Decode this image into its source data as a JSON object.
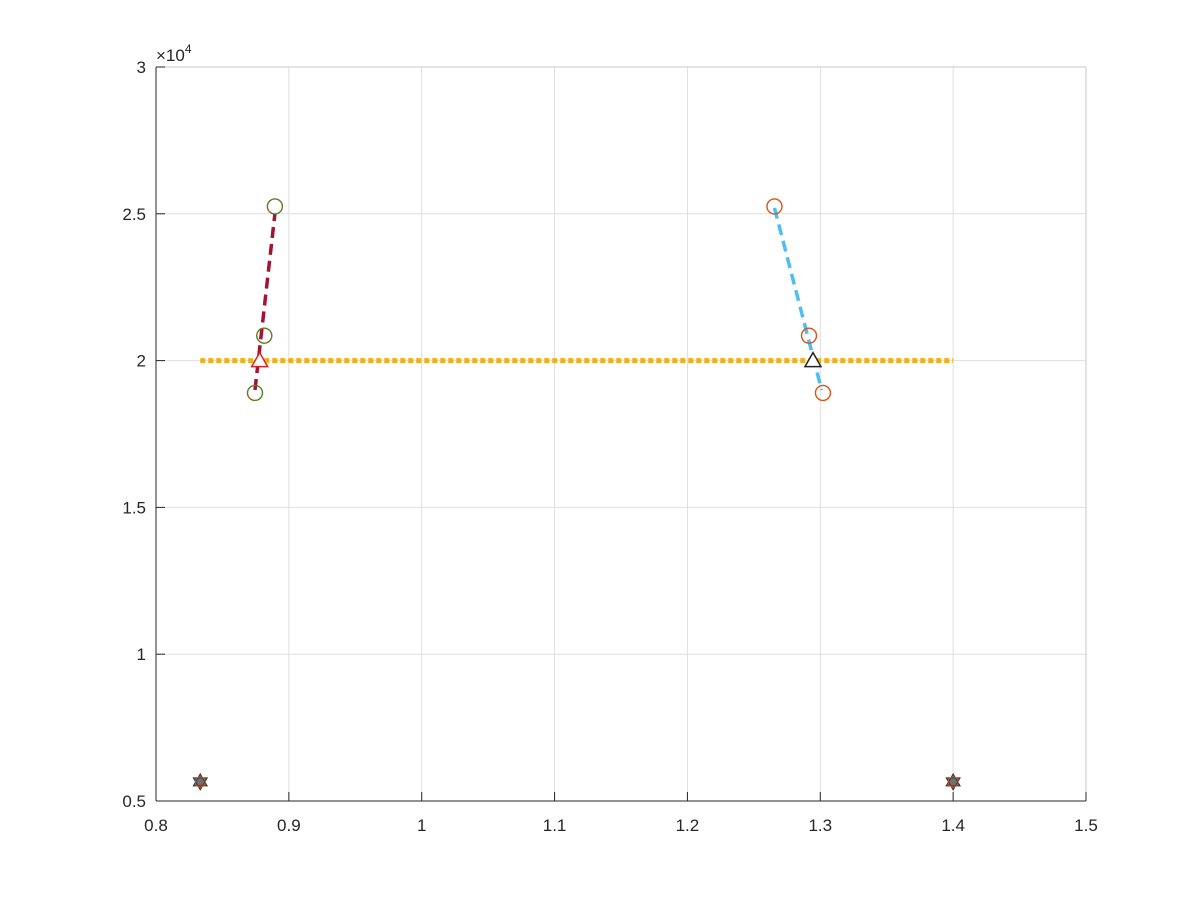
{
  "chart_data": {
    "type": "scatter",
    "title": "",
    "xlabel": "",
    "ylabel": "",
    "xlim": [
      0.8,
      1.5
    ],
    "ylim": [
      5000,
      30000
    ],
    "grid": true,
    "x_ticks": [
      0.8,
      0.9,
      1.0,
      1.1,
      1.2,
      1.3,
      1.4,
      1.5
    ],
    "x_tick_labels": [
      "0.8",
      "0.9",
      "1",
      "1.1",
      "1.2",
      "1.3",
      "1.4",
      "1.5"
    ],
    "y_ticks": [
      5000,
      10000,
      15000,
      20000,
      25000,
      30000
    ],
    "y_tick_labels": [
      "0.5",
      "1",
      "1.5",
      "2",
      "2.5",
      "3"
    ],
    "y_exponent_label": {
      "prefix": "×10",
      "power": "4"
    },
    "colors": {
      "axis": "#262626",
      "grid": "#dfdfdf",
      "horizontal": "#edb120",
      "left_line": "#a2142f",
      "right_line": "#4dbeee",
      "left_circle_a": "#2c8a2c",
      "left_circle_b": "#d95319",
      "right_circle": "#d95319",
      "triangle_fill": "#ffffff",
      "triangle_stroke_a": "#d9232a",
      "triangle_stroke_b": "#222222",
      "hexagram": "#707070"
    },
    "series": [
      {
        "name": "horizontal-dotted",
        "style": "dotted",
        "color_key": "horizontal",
        "x": [
          0.8333,
          1.4
        ],
        "y": [
          20000,
          20000
        ]
      },
      {
        "name": "left-dashed",
        "style": "dashed",
        "color_key": "left_line",
        "x": [
          0.8745,
          0.8895
        ],
        "y": [
          19000,
          25000
        ]
      },
      {
        "name": "right-dashed",
        "style": "dashed",
        "color_key": "right_line",
        "x": [
          1.2655,
          1.301
        ],
        "y": [
          25200,
          19000
        ]
      },
      {
        "name": "left-circles",
        "style": "circle",
        "color_key": "left_circle_a",
        "x": [
          0.8745,
          0.8815,
          0.8895
        ],
        "y": [
          18900,
          20850,
          25250
        ]
      },
      {
        "name": "right-circles",
        "style": "circle",
        "color_key": "right_circle",
        "x": [
          1.2655,
          1.2915,
          1.302
        ],
        "y": [
          25250,
          20850,
          18900
        ]
      },
      {
        "name": "triangles",
        "style": "triangle",
        "x": [
          0.878,
          1.2945
        ],
        "y": [
          20000,
          20000
        ]
      },
      {
        "name": "hexagrams",
        "style": "hexagram",
        "color_key": "hexagram",
        "x": [
          0.8333,
          1.4
        ],
        "y": [
          5650,
          5650
        ]
      }
    ]
  }
}
